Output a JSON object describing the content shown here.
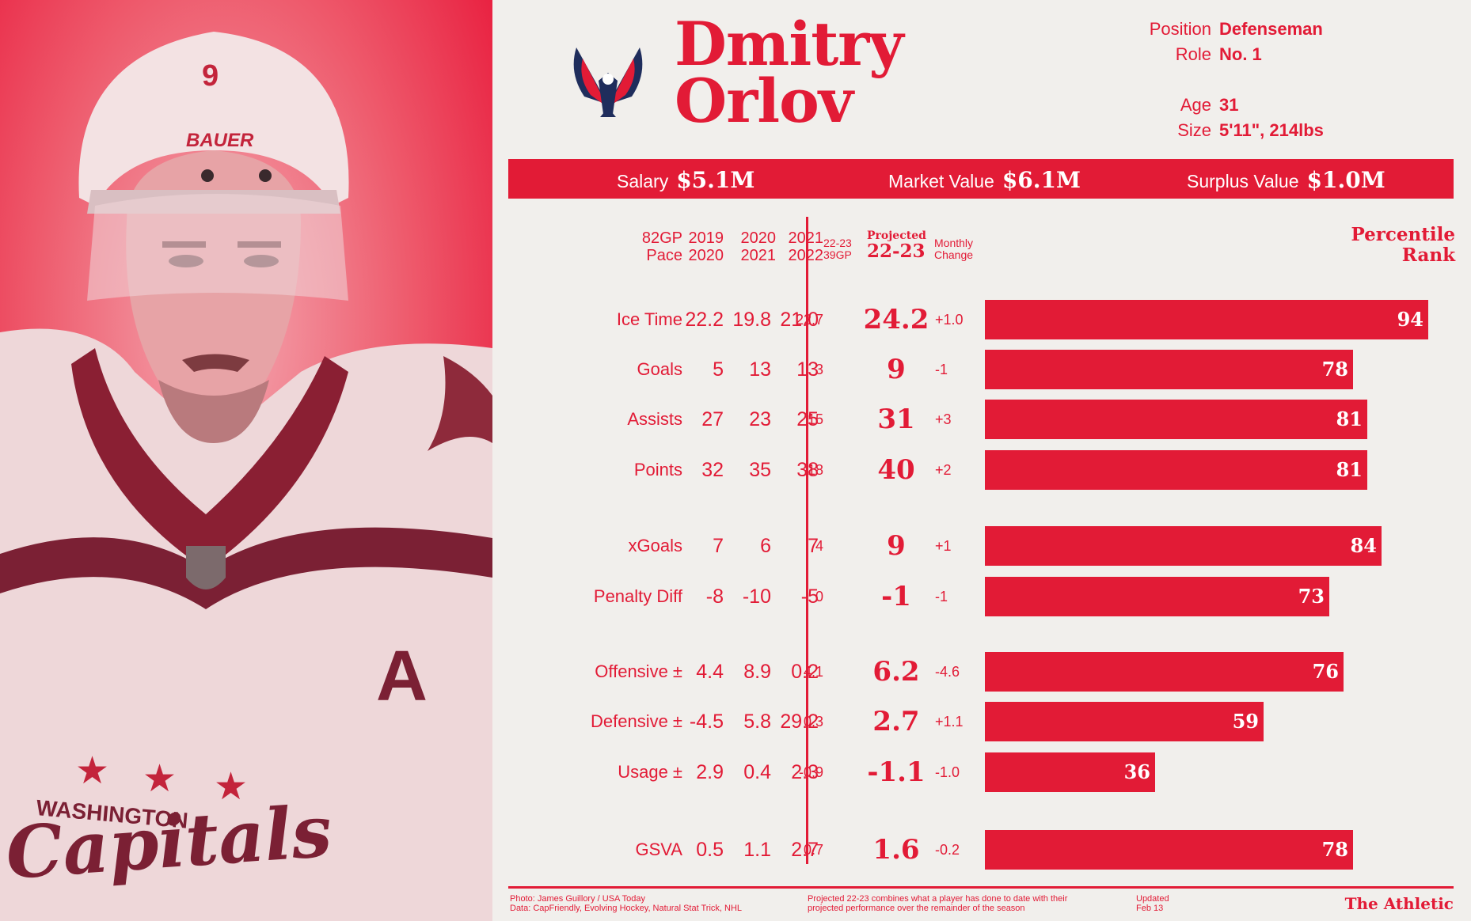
{
  "player": {
    "first_name": "Dmitry",
    "last_name": "Orlov",
    "position_label": "Position",
    "position": "Defenseman",
    "role_label": "Role",
    "role": "No. 1",
    "age_label": "Age",
    "age": "31",
    "size_label": "Size",
    "size": "5'11\", 214lbs",
    "jersey_number": "9",
    "helmet_brand": "BAUER",
    "jersey_text_1": "WASHINGTON",
    "jersey_text_2": "Capitals",
    "jersey_letter": "A"
  },
  "value_bar": {
    "salary_label": "Salary",
    "salary": "$5.1M",
    "market_label": "Market Value",
    "market": "$6.1M",
    "surplus_label": "Surplus Value",
    "surplus": "$1.0M"
  },
  "headers": {
    "pace_1": "82GP",
    "pace_2": "Pace",
    "s1_a": "2019",
    "s1_b": "2020",
    "s2_a": "2020",
    "s2_b": "2021",
    "s3_a": "2021",
    "s3_b": "2022",
    "cur_a": "22-23",
    "cur_b": "39GP",
    "proj_a": "Projected",
    "proj_b": "22-23",
    "chg_a": "Monthly",
    "chg_b": "Change",
    "pct_a": "Percentile",
    "pct_b": "Rank"
  },
  "chart_data": {
    "type": "table",
    "title": "Dmitry Orlov",
    "columns": [
      "2019-2020",
      "2020-2021",
      "2021-2022",
      "22-23 39GP",
      "Projected 22-23",
      "Monthly Change",
      "Percentile Rank"
    ],
    "rows": [
      {
        "stat": "Ice Time",
        "s1": "22.2",
        "s2": "19.8",
        "s3": "21.0",
        "cur": "22.7",
        "proj": "24.2",
        "chg": "+1.0",
        "pct": 94
      },
      {
        "stat": "Goals",
        "s1": "5",
        "s2": "13",
        "s3": "13",
        "cur": "3",
        "proj": "9",
        "chg": "-1",
        "pct": 78
      },
      {
        "stat": "Assists",
        "s1": "27",
        "s2": "23",
        "s3": "25",
        "cur": "15",
        "proj": "31",
        "chg": "+3",
        "pct": 81
      },
      {
        "stat": "Points",
        "s1": "32",
        "s2": "35",
        "s3": "38",
        "cur": "18",
        "proj": "40",
        "chg": "+2",
        "pct": 81
      },
      {
        "stat": "xGoals",
        "s1": "7",
        "s2": "6",
        "s3": "7",
        "cur": "4",
        "proj": "9",
        "chg": "+1",
        "pct": 84
      },
      {
        "stat": "Penalty Diff",
        "s1": "-8",
        "s2": "-10",
        "s3": "-5",
        "cur": "0",
        "proj": "-1",
        "chg": "-1",
        "pct": 73
      },
      {
        "stat": "Offensive ±",
        "s1": "4.4",
        "s2": "8.9",
        "s3": "0.2",
        "cur": "4.1",
        "proj": "6.2",
        "chg": "-4.6",
        "pct": 76
      },
      {
        "stat": "Defensive ±",
        "s1": "-4.5",
        "s2": "5.8",
        "s3": "29.2",
        "cur": "0.3",
        "proj": "2.7",
        "chg": "+1.1",
        "pct": 59
      },
      {
        "stat": "Usage ±",
        "s1": "2.9",
        "s2": "0.4",
        "s3": "2.3",
        "cur": "-0.9",
        "proj": "-1.1",
        "chg": "-1.0",
        "pct": 36
      },
      {
        "stat": "GSVA",
        "s1": "0.5",
        "s2": "1.1",
        "s3": "2.7",
        "cur": "0.7",
        "proj": "1.6",
        "chg": "-0.2",
        "pct": 78
      }
    ],
    "percentile_range": [
      0,
      100
    ]
  },
  "footer": {
    "credit_1": "Photo: James Guillory / USA Today",
    "credit_2": "Data: CapFriendly, Evolving Hockey, Natural Stat Trick, NHL",
    "note_1": "Projected 22-23 combines what a player has done to date with their",
    "note_2": "projected performance over the remainder of the season",
    "updated_1": "Updated",
    "updated_2": "Feb 13",
    "brand": "The Athletic"
  },
  "colors": {
    "accent": "#e21b36",
    "background": "#f1efec"
  }
}
